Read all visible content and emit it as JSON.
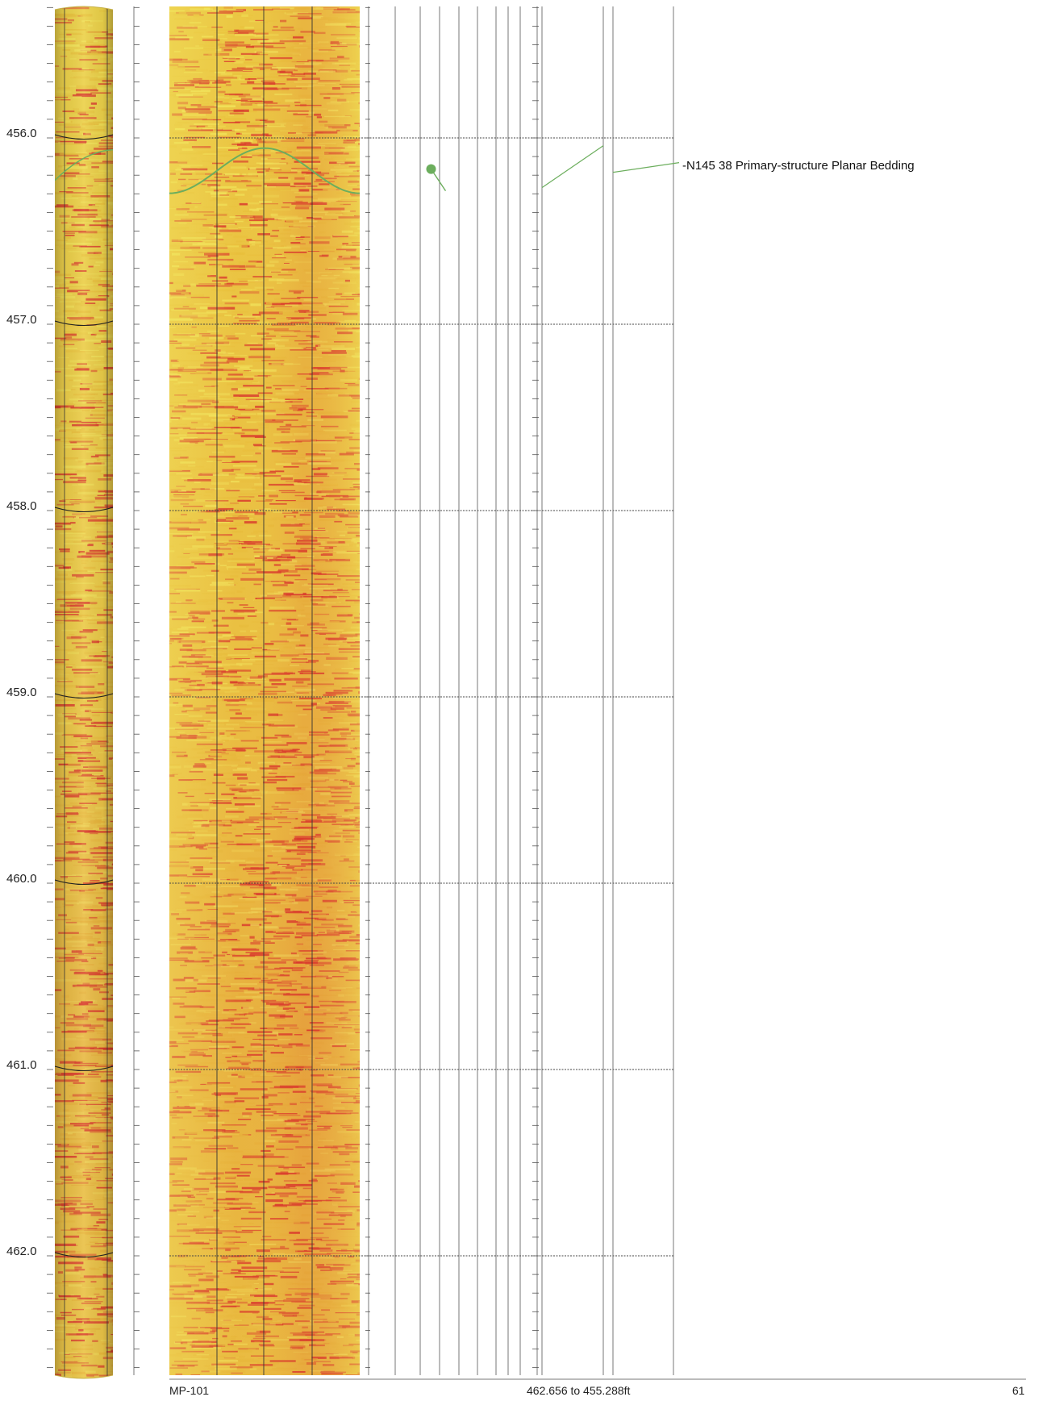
{
  "log": {
    "depth_labels": [
      "456.0",
      "457.0",
      "458.0",
      "459.0",
      "460.0",
      "461.0",
      "462.0"
    ],
    "depth_range": {
      "top": 455.288,
      "bottom": 462.656,
      "unit": "ft"
    },
    "annotation": {
      "text": "-N145 38 Primary-structure Planar Bedding",
      "depth": 456.15,
      "azimuth": 145,
      "dip": 38,
      "category": "Primary-structure",
      "type": "Planar Bedding"
    },
    "colors": {
      "image_light": "#f1e55a",
      "image_mid": "#e9c23c",
      "image_dark": "#d9372c",
      "feature_line": "#6cae5d",
      "grid_line": "#555555"
    }
  },
  "footer": {
    "well_name": "MP-101",
    "depth_range_text": "462.656 to 455.288ft",
    "page_number": "61"
  }
}
